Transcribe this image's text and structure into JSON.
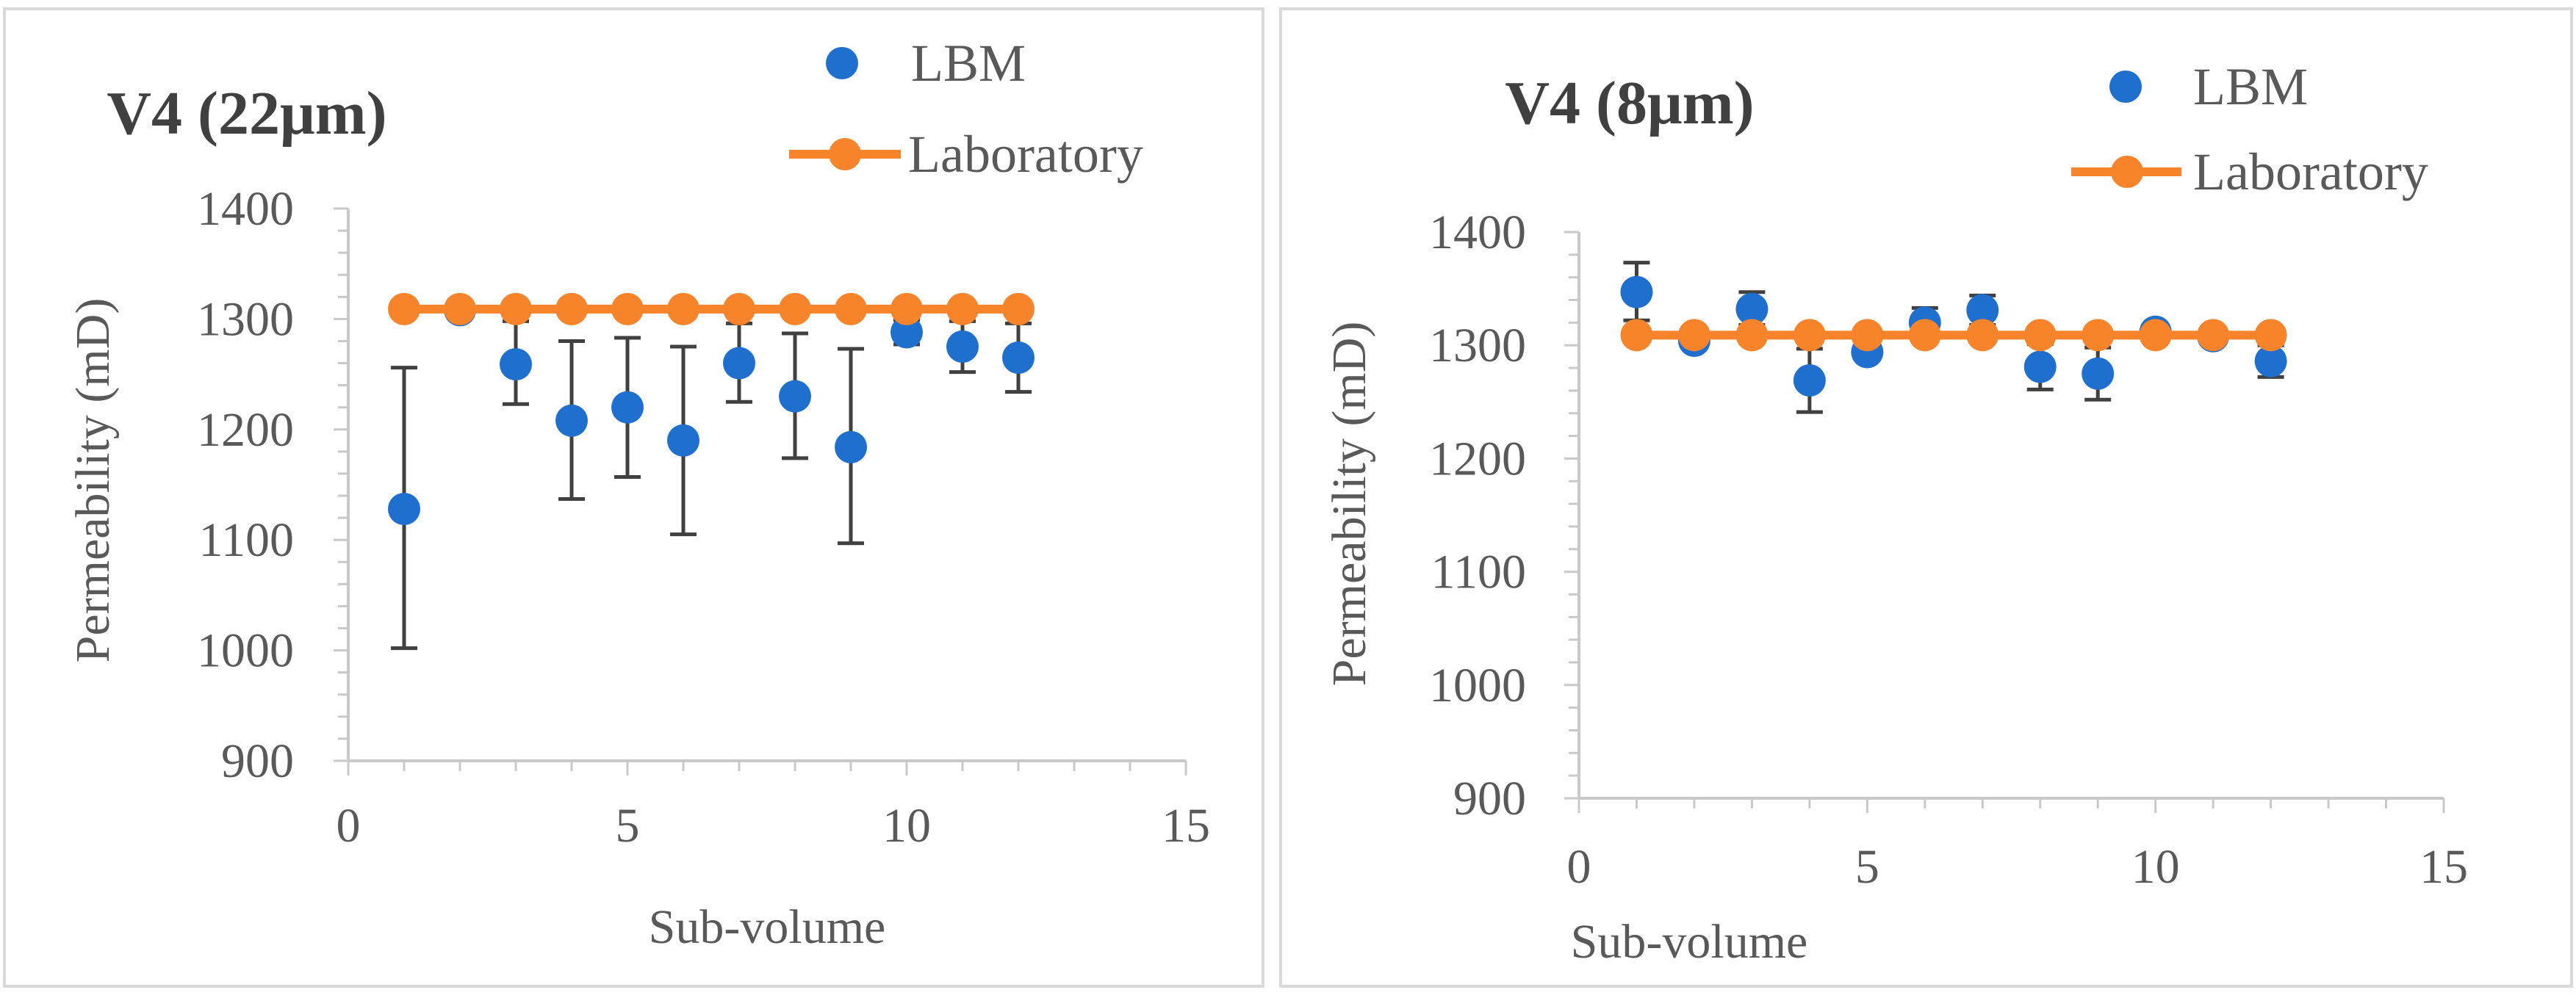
{
  "colors": {
    "lbm": "#1f6fce",
    "laboratory": "#f7832a",
    "axis": "#c9c9c9",
    "errorbar": "#404040",
    "text": "#595959",
    "title": "#404040",
    "legend_text": "#595959"
  },
  "chart_data": [
    {
      "type": "scatter",
      "title": "V4 (22μm)",
      "xlabel": "Sub-volume",
      "ylabel": "Permeability (mD)",
      "xlim": [
        0,
        15
      ],
      "ylim": [
        900,
        1400
      ],
      "xticks": [
        0,
        5,
        10,
        15
      ],
      "yticks": [
        900,
        1000,
        1100,
        1200,
        1300,
        1400
      ],
      "xtick_labels": [
        "0",
        "5",
        "10",
        "15"
      ],
      "ytick_labels": [
        "900",
        "1000",
        "1100",
        "1200",
        "1300",
        "1400"
      ],
      "legend": [
        "LBM",
        "Laboratory"
      ],
      "legend_position": "top-right",
      "series": [
        {
          "name": "LBM",
          "marker": "circle",
          "x": [
            1,
            2,
            3,
            4,
            5,
            6,
            7,
            8,
            9,
            10,
            11,
            12
          ],
          "y": [
            1128,
            1308,
            1259,
            1208,
            1220,
            1190,
            1260,
            1230,
            1184,
            1288,
            1275,
            1265
          ],
          "err_low": [
            1002,
            1308,
            1223,
            1137,
            1157,
            1105,
            1225,
            1174,
            1097,
            1277,
            1252,
            1234
          ],
          "err_high": [
            1256,
            1308,
            1298,
            1280,
            1283,
            1275,
            1296,
            1287,
            1273,
            1299,
            1298,
            1296
          ]
        },
        {
          "name": "Laboratory",
          "marker": "circle-line",
          "x": [
            1,
            2,
            3,
            4,
            5,
            6,
            7,
            8,
            9,
            10,
            11,
            12
          ],
          "y": [
            1309,
            1309,
            1309,
            1309,
            1309,
            1309,
            1309,
            1309,
            1309,
            1309,
            1309,
            1309
          ]
        }
      ]
    },
    {
      "type": "scatter",
      "title": "V4 (8μm)",
      "xlabel": "Sub-volume",
      "ylabel": "Permeability (mD)",
      "xlim": [
        0,
        15
      ],
      "ylim": [
        900,
        1400
      ],
      "xticks": [
        0,
        5,
        10,
        15
      ],
      "yticks": [
        900,
        1000,
        1100,
        1200,
        1300,
        1400
      ],
      "xtick_labels": [
        "0",
        "5",
        "10",
        "15"
      ],
      "ytick_labels": [
        "900",
        "1000",
        "1100",
        "1200",
        "1300",
        "1400"
      ],
      "legend": [
        "LBM",
        "Laboratory"
      ],
      "legend_position": "top-right",
      "series": [
        {
          "name": "LBM",
          "marker": "circle",
          "x": [
            1,
            2,
            3,
            4,
            5,
            6,
            7,
            8,
            9,
            10,
            11,
            12
          ],
          "y": [
            1347,
            1304,
            1332,
            1269,
            1294,
            1320,
            1331,
            1281,
            1275,
            1312,
            1308,
            1286
          ],
          "err_low": [
            1322,
            1304,
            1318,
            1241,
            1294,
            1307,
            1318,
            1261,
            1252,
            1312,
            1308,
            1272
          ],
          "err_high": [
            1373,
            1304,
            1347,
            1297,
            1294,
            1333,
            1344,
            1301,
            1298,
            1312,
            1308,
            1300
          ]
        },
        {
          "name": "Laboratory",
          "marker": "circle-line",
          "x": [
            1,
            2,
            3,
            4,
            5,
            6,
            7,
            8,
            9,
            10,
            11,
            12
          ],
          "y": [
            1309,
            1309,
            1309,
            1309,
            1309,
            1309,
            1309,
            1309,
            1309,
            1309,
            1309,
            1309
          ]
        }
      ]
    }
  ]
}
